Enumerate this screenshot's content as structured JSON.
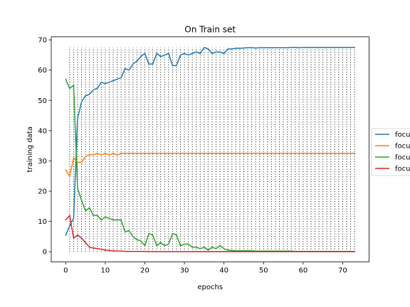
{
  "chart_data": {
    "type": "line",
    "title": "On Train set",
    "xlabel": "epochs",
    "ylabel": "training data",
    "xlim": [
      -3.65,
      76.65
    ],
    "ylim": [
      -3.4,
      71.0
    ],
    "xticks": [
      0,
      10,
      20,
      30,
      40,
      50,
      60,
      70
    ],
    "yticks": [
      0,
      10,
      20,
      30,
      40,
      50,
      60,
      70
    ],
    "grid": false,
    "legend_position": "right, outside plot area (clipped)",
    "colors": {
      "blue": "#1f77b4",
      "orange": "#ff7f0e",
      "green": "#2ca02c",
      "red": "#d62728",
      "dots": "#000000"
    },
    "x": [
      0,
      1,
      2,
      3,
      4,
      5,
      6,
      7,
      8,
      9,
      10,
      11,
      12,
      13,
      14,
      15,
      16,
      17,
      18,
      19,
      20,
      21,
      22,
      23,
      24,
      25,
      26,
      27,
      28,
      29,
      30,
      31,
      32,
      33,
      34,
      35,
      36,
      37,
      38,
      39,
      40,
      41,
      42,
      43,
      44,
      45,
      46,
      47,
      48,
      49,
      50,
      51,
      52,
      53,
      54,
      55,
      56,
      57,
      58,
      59,
      60,
      61,
      62,
      63,
      64,
      65,
      66,
      67,
      68,
      69,
      70,
      71,
      72,
      73
    ],
    "series": [
      {
        "legend_label": "focu",
        "color": "#1f77b4",
        "values": [
          5.5,
          8.5,
          11,
          44,
          49.5,
          51.5,
          52,
          53.5,
          54,
          56,
          55.5,
          56,
          56.5,
          57,
          57.5,
          60.5,
          60,
          62,
          63,
          64.5,
          65.5,
          62,
          62,
          65.5,
          64.5,
          65,
          65.5,
          61.5,
          61.5,
          65,
          65.5,
          65,
          65.5,
          66,
          65.5,
          67.5,
          67,
          65.5,
          66,
          66,
          65.5,
          67,
          67,
          67.2,
          67.2,
          67.3,
          67.4,
          67.4,
          67.3,
          67.4,
          67.4,
          67.4,
          67.4,
          67.4,
          67.4,
          67.4,
          67.4,
          67.5,
          67.5,
          67.4,
          67.5,
          67.5,
          67.5,
          67.5,
          67.5,
          67.5,
          67.5,
          67.5,
          67.5,
          67.5,
          67.5,
          67.5,
          67.5,
          67.5
        ]
      },
      {
        "legend_label": "focu",
        "color": "#ff7f0e",
        "values": [
          27,
          25,
          31,
          29.5,
          29.5,
          31.5,
          32,
          32,
          32.5,
          32,
          32.5,
          32,
          32.5,
          32,
          32.5,
          32.5,
          32.5,
          32.5,
          32.5,
          32.5,
          32.5,
          32.5,
          32.5,
          32.5,
          32.5,
          32.5,
          32.5,
          32.5,
          32.5,
          32.5,
          32.5,
          32.5,
          32.5,
          32.5,
          32.5,
          32.5,
          32.5,
          32.5,
          32.5,
          32.5,
          32.5,
          32.5,
          32.5,
          32.5,
          32.5,
          32.5,
          32.5,
          32.5,
          32.5,
          32.5,
          32.5,
          32.5,
          32.5,
          32.5,
          32.5,
          32.5,
          32.5,
          32.5,
          32.5,
          32.5,
          32.5,
          32.5,
          32.5,
          32.5,
          32.5,
          32.5,
          32.5,
          32.5,
          32.5,
          32.5,
          32.5,
          32.5,
          32.5,
          32.5
        ]
      },
      {
        "legend_label": "focu",
        "color": "#2ca02c",
        "values": [
          57,
          54,
          55,
          21,
          17,
          13.5,
          14.5,
          12,
          12,
          10.5,
          11.5,
          11,
          10.5,
          10.5,
          10.5,
          6.5,
          7,
          5,
          4,
          3.5,
          2,
          6,
          5.5,
          2,
          3,
          2,
          2.5,
          6,
          5.5,
          2,
          2.5,
          2.5,
          1.5,
          1.5,
          1,
          1.5,
          0.5,
          1.5,
          1,
          2,
          1,
          0.5,
          0.4,
          0.3,
          0.3,
          0.3,
          0.3,
          0.3,
          0.2,
          0.2,
          0.2,
          0.2,
          0.2,
          0.2,
          0.2,
          0.2,
          0.2,
          0.2,
          0.1,
          0.1,
          0.1,
          0.1,
          0.1,
          0.1,
          0.1,
          0.1,
          0.1,
          0.1,
          0.1,
          0.1,
          0.1,
          0.1,
          0.1,
          0.1
        ]
      },
      {
        "legend_label": "focu",
        "color": "#d62728",
        "values": [
          10.5,
          12,
          4.5,
          5.5,
          4.5,
          3,
          1.5,
          1.2,
          1,
          0.8,
          0.5,
          0.4,
          0.3,
          0.2,
          0.2,
          0.1,
          0.1,
          0.1,
          0.1,
          0.1,
          0.1,
          0,
          0,
          0,
          0,
          0,
          0,
          0,
          0,
          0,
          0,
          0,
          0,
          0,
          0,
          0,
          0,
          0,
          0,
          0,
          0,
          0,
          0,
          0,
          0,
          0,
          0,
          0,
          0,
          0,
          0,
          0,
          0,
          0,
          0,
          0,
          0,
          0,
          0,
          0,
          0,
          0,
          0,
          0,
          0,
          0,
          0,
          0,
          0,
          0,
          0,
          0,
          0,
          0
        ]
      }
    ],
    "dotted_verticals": {
      "from_epoch": 1,
      "to_epoch": 73,
      "y_from": 0,
      "y_to": 67.5,
      "style": "black dotted"
    }
  }
}
